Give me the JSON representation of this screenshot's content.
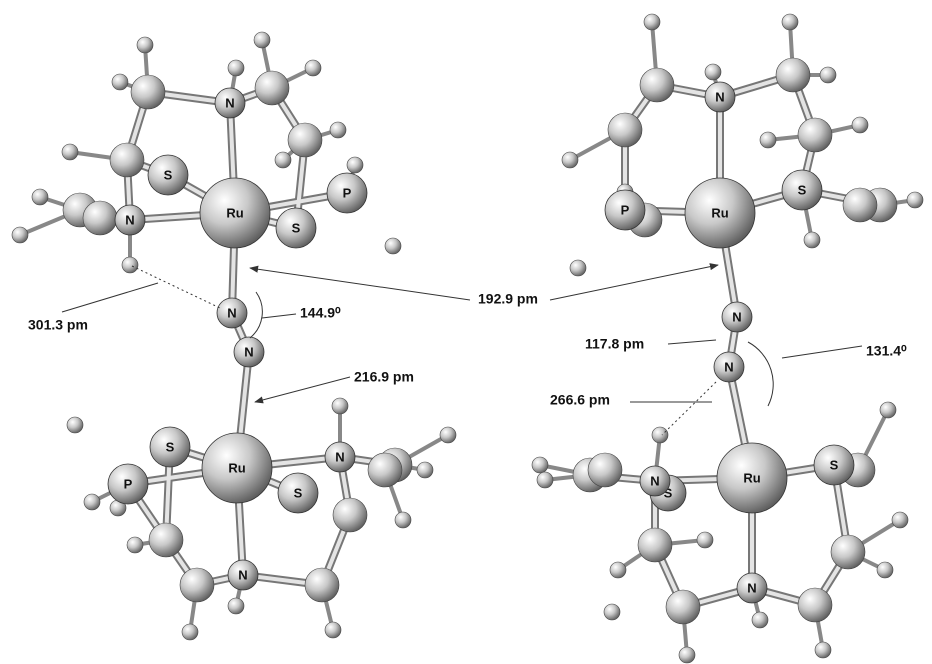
{
  "left_structure": {
    "atoms": [
      "N",
      "S",
      "Ru",
      "S",
      "P",
      "N",
      "N",
      "N",
      "S",
      "Ru",
      "N",
      "S",
      "P",
      "N"
    ]
  },
  "right_structure": {
    "atoms": [
      "N",
      "P",
      "Ru",
      "S",
      "N",
      "N",
      "S",
      "N",
      "Ru",
      "S",
      "N"
    ]
  },
  "measurements": [
    "301.3 pm",
    "144.9⁰",
    "192.9 pm",
    "216.9 pm",
    "117.8 pm",
    "131.4⁰",
    "266.6 pm"
  ]
}
